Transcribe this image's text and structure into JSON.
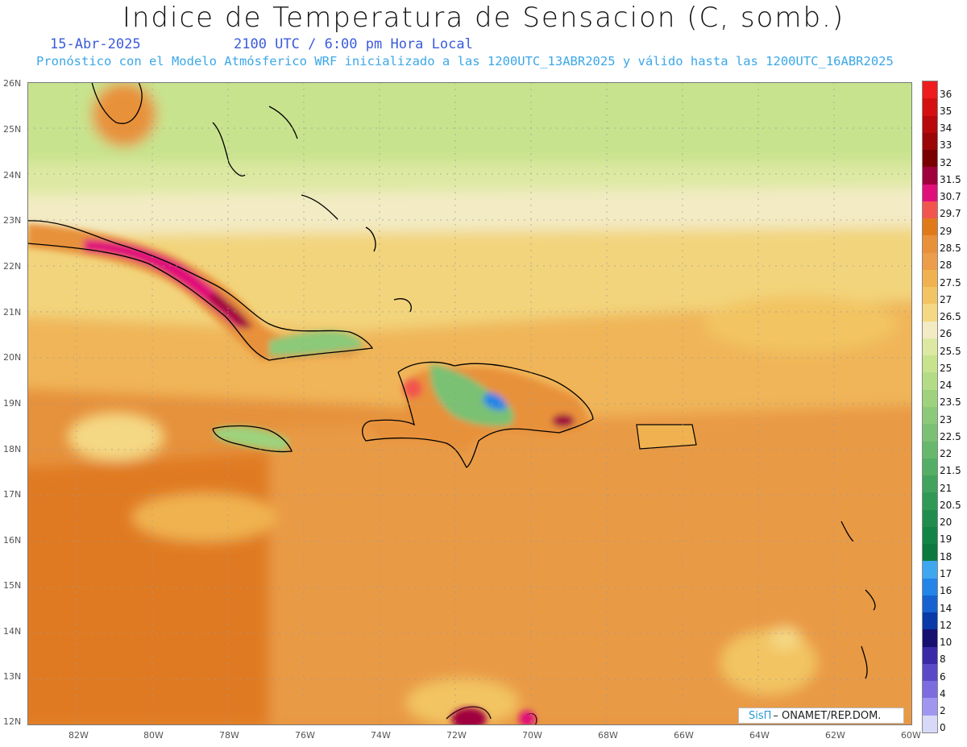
{
  "header": {
    "title": "Indice de Temperatura de Sensacion (C, somb.)",
    "date": "15-Abr-2025",
    "time": "2100 UTC / 6:00 pm Hora Local",
    "forecast_info": "Pronóstico con el Modelo Atmósferico WRF inicializado a las 1200UTC_13ABR2025 y válido hasta las  1200UTC_16ABR2025"
  },
  "axes": {
    "lat_labels": [
      "26N",
      "25N",
      "24N",
      "23N",
      "22N",
      "21N",
      "20N",
      "19N",
      "18N",
      "17N",
      "16N",
      "15N",
      "14N",
      "13N",
      "12N"
    ],
    "lon_labels": [
      "82W",
      "80W",
      "78W",
      "76W",
      "74W",
      "72W",
      "70W",
      "68W",
      "66W",
      "64W",
      "62W",
      "60W"
    ]
  },
  "colorbar": {
    "labels": [
      "36",
      "35",
      "34",
      "33",
      "32",
      "31.5",
      "30.7",
      "29.7",
      "29",
      "28.5",
      "28",
      "27.5",
      "27",
      "26.5",
      "26",
      "25.5",
      "25",
      "24",
      "23.5",
      "23",
      "22.5",
      "22",
      "21.5",
      "21",
      "20.5",
      "20",
      "19",
      "18",
      "17",
      "16",
      "14",
      "12",
      "10",
      "8",
      "6",
      "4",
      "2",
      "0"
    ],
    "colors": [
      "#ee1c1c",
      "#d41010",
      "#b80a0a",
      "#9c0606",
      "#7a0000",
      "#a0003c",
      "#e0107a",
      "#f2554e",
      "#e07a18",
      "#e8913a",
      "#ec9e4a",
      "#f0b250",
      "#f2c462",
      "#f5d884",
      "#f3ebc4",
      "#dde9a2",
      "#c8e38e",
      "#b4dc86",
      "#9ed27c",
      "#8cc979",
      "#7ac173",
      "#67b86c",
      "#54ae66",
      "#42a35e",
      "#309956",
      "#208d4e",
      "#128445",
      "#0c7a3e",
      "#3fa6f0",
      "#2484e8",
      "#1562d0",
      "#0a3aa8",
      "#161070",
      "#3a2aa8",
      "#5a4ac8",
      "#7c6ce0",
      "#a096f0",
      "#d8d8f8"
    ]
  },
  "credit": {
    "sis": "SisΠ",
    "text": "– ONAMET/REP.DOM."
  }
}
